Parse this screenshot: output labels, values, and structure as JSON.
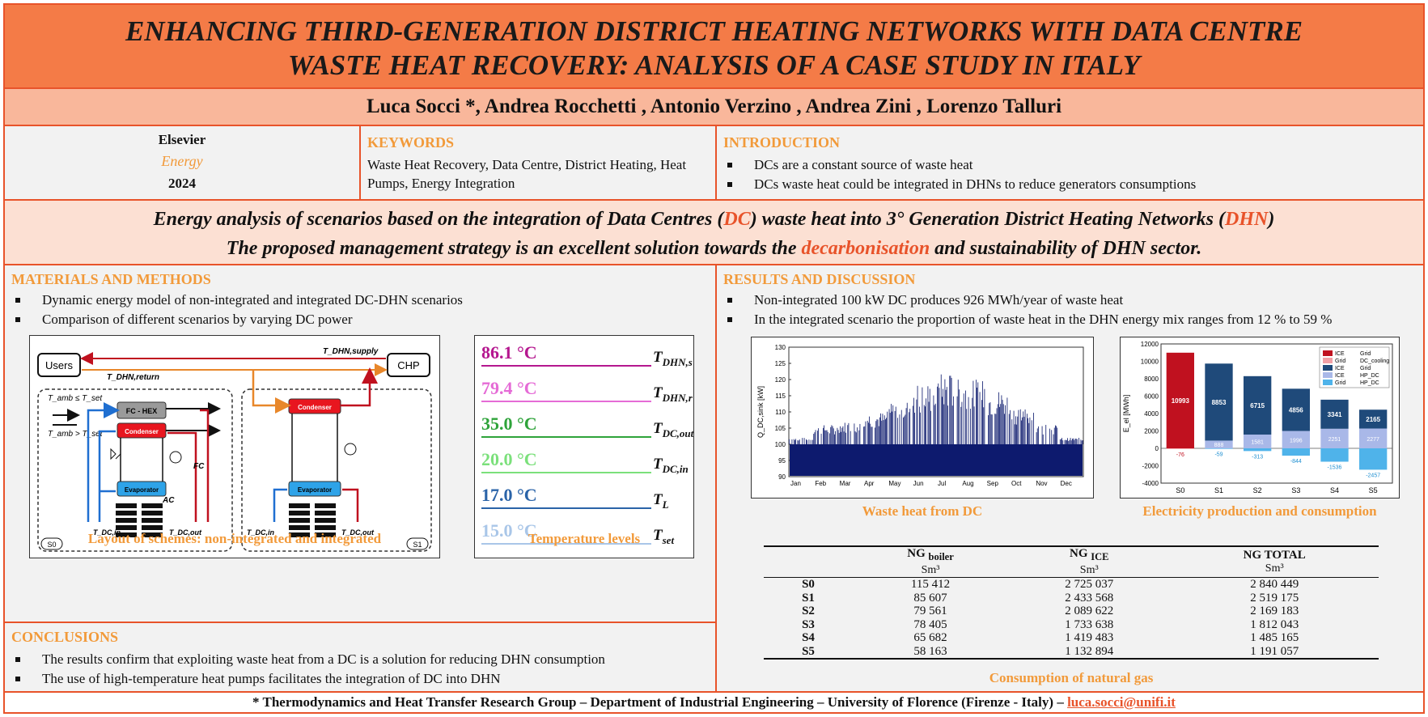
{
  "title": {
    "line1": "ENHANCING THIRD-GENERATION DISTRICT HEATING NETWORKS WITH DATA CENTRE",
    "line2": "WASTE HEAT RECOVERY: ANALYSIS OF A CASE STUDY IN ITALY"
  },
  "authors": "Luca Socci *, Andrea Rocchetti , Antonio Verzino , Andrea Zini , Lorenzo Talluri",
  "journal": {
    "publisher": "Elsevier",
    "name": "Energy",
    "year": "2024"
  },
  "keywords": {
    "heading": "KEYWORDS",
    "text": "Waste Heat Recovery, Data Centre, District Heating, Heat Pumps, Energy Integration"
  },
  "introduction": {
    "heading": "INTRODUCTION",
    "items": [
      "DCs are a constant source of waste heat",
      "DCs waste heat could be integrated in DHNs to reduce generators consumptions"
    ]
  },
  "highlight": {
    "l1a": "Energy analysis of scenarios based on the integration of Data Centres (",
    "l1b": "DC",
    "l1c": ") waste heat into 3° Generation District Heating Networks (",
    "l1d": "DHN",
    "l1e": ")",
    "l2a": "The proposed management strategy is an excellent solution towards the ",
    "l2b": "decarbonisation",
    "l2c": " and sustainability of DHN sector."
  },
  "methods": {
    "heading": "MATERIALS AND METHODS",
    "items": [
      "Dynamic energy model of non-integrated and integrated DC-DHN scenarios",
      "Comparison of different scenarios by varying DC power"
    ],
    "layout_caption": "Layout of schemes: non-integrated and integrated",
    "temp_caption": "Temperature levels"
  },
  "schematic": {
    "users": "Users",
    "chp": "CHP",
    "supply": "T_DHN,supply",
    "return": "T_DHN,return",
    "cond_amb_le": "T_amb ≤ T_set",
    "cond_amb_gt": "T_amb > T_set",
    "fc_hex": "FC - HEX",
    "condenser": "Condenser",
    "evaporator": "Evaporator",
    "fc": "FC",
    "ac": "AC",
    "tdc_in": "T_DC,in",
    "tdc_out": "T_DC,out",
    "s0": "S0",
    "s1": "S1"
  },
  "temperatures": [
    {
      "value": "86.1 °C",
      "sym": "T",
      "sub": "DHN,s",
      "color": "#b5178f"
    },
    {
      "value": "79.4 °C",
      "sym": "T",
      "sub": "DHN,r",
      "color": "#e56bd6"
    },
    {
      "value": "35.0 °C",
      "sym": "T",
      "sub": "DC,out",
      "color": "#2ea33a"
    },
    {
      "value": "20.0 °C",
      "sym": "T",
      "sub": "DC,in",
      "color": "#7be07b"
    },
    {
      "value": "17.0 °C",
      "sym": "T",
      "sub": "L",
      "color": "#2a63a8"
    },
    {
      "value": "15.0 °C",
      "sym": "T",
      "sub": "set",
      "color": "#a9c6e8"
    }
  ],
  "conclusions": {
    "heading": "CONCLUSIONS",
    "items": [
      "The results confirm that exploiting waste heat from a DC is a solution for reducing DHN consumption",
      "The use of high-temperature heat pumps facilitates the integration of DC into DHN"
    ]
  },
  "results": {
    "heading": "RESULTS AND DISCUSSION",
    "items": [
      "Non-integrated 100 kW DC produces 926 MWh/year of waste heat",
      "In the integrated scenario the proportion of waste heat in the DHN energy mix ranges from 12 % to 59 %"
    ],
    "waste_caption": "Waste heat from DC",
    "elec_caption": "Electricity production and consumption",
    "gas_caption": "Consumption of natural gas"
  },
  "chart_data": [
    {
      "type": "area",
      "ylabel": "Q_DC,sink [kW]",
      "categories": [
        "Jan",
        "Feb",
        "Mar",
        "Apr",
        "May",
        "Jun",
        "Jul",
        "Aug",
        "Sep",
        "Oct",
        "Nov",
        "Dec"
      ],
      "ylim": [
        90,
        130
      ],
      "yticks": [
        90,
        95,
        100,
        105,
        110,
        115,
        120,
        125,
        130
      ],
      "base": 100,
      "monthly_peak": [
        102,
        106,
        107,
        110,
        114,
        119,
        122,
        120,
        117,
        112,
        106,
        102
      ],
      "color": "#0d1a6e"
    },
    {
      "type": "bar",
      "ylabel": "E_el [MWh]",
      "categories": [
        "S0",
        "S1",
        "S2",
        "S3",
        "S4",
        "S5"
      ],
      "ylim": [
        -4000,
        12000
      ],
      "yticks": [
        -4000,
        -2000,
        0,
        2000,
        4000,
        6000,
        8000,
        10000,
        12000
      ],
      "series": [
        {
          "name": "ICE",
          "values": [
            10993,
            8853,
            6715,
            4856,
            3341,
            2165
          ],
          "color_s0": "#c0111f",
          "color": "#1f4a7a"
        },
        {
          "name": "HP_DC",
          "values": [
            0,
            888,
            1581,
            1996,
            2251,
            2277
          ],
          "color": "#a9b8e8"
        },
        {
          "name": "Grid",
          "values": [
            -76,
            -59,
            -313,
            -844,
            -1536,
            -2457
          ],
          "color_s0": "#f2a0a6",
          "color": "#4fb3ea"
        }
      ],
      "legend": [
        {
          "label": "ICE",
          "label2": "Grid",
          "color": "#c0111f"
        },
        {
          "label": "Grid",
          "label2": "DC_cooling",
          "color": "#f2a0a6"
        },
        {
          "label": "ICE",
          "label2": "Grid",
          "color": "#1f4a7a"
        },
        {
          "label": "ICE",
          "label2": "HP_DC",
          "color": "#a9b8e8"
        },
        {
          "label": "Grid",
          "label2": "HP_DC",
          "color": "#4fb3ea"
        }
      ]
    },
    {
      "type": "table",
      "columns": [
        {
          "name": "NG",
          "sub": "boiler",
          "unit": "Sm³"
        },
        {
          "name": "NG",
          "sub": "ICE",
          "unit": "Sm³"
        },
        {
          "name": "NG TOTAL",
          "sub": "",
          "unit": "Sm³"
        }
      ],
      "rows": [
        {
          "scenario": "S0",
          "boiler": "115 412",
          "ice": "2 725 037",
          "total": "2 840 449"
        },
        {
          "scenario": "S1",
          "boiler": "85 607",
          "ice": "2 433 568",
          "total": "2 519 175"
        },
        {
          "scenario": "S2",
          "boiler": "79 561",
          "ice": "2 089 622",
          "total": "2 169 183"
        },
        {
          "scenario": "S3",
          "boiler": "78 405",
          "ice": "1 733 638",
          "total": "1 812 043"
        },
        {
          "scenario": "S4",
          "boiler": "65 682",
          "ice": "1 419 483",
          "total": "1 485 165"
        },
        {
          "scenario": "S5",
          "boiler": "58 163",
          "ice": "1 132 894",
          "total": "1 191 057"
        }
      ]
    }
  ],
  "footer": {
    "text": "* Thermodynamics and Heat Transfer Research Group – Department of Industrial Engineering – University of Florence (Firenze - Italy) – ",
    "email": "luca.socci@unifi.it"
  }
}
